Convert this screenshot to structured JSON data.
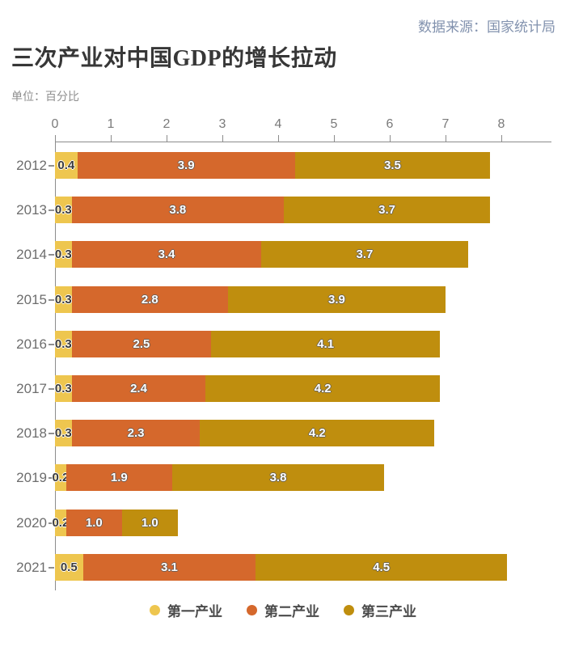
{
  "header": {
    "source": "数据来源：国家统计局",
    "title": "三次产业对中国GDP的增长拉动",
    "unit_label": "单位：百分比"
  },
  "chart_data": {
    "type": "bar",
    "orientation": "horizontal",
    "stacked": true,
    "title": "三次产业对中国GDP的增长拉动",
    "unit": "百分比",
    "categories": [
      "2012",
      "2013",
      "2014",
      "2015",
      "2016",
      "2017",
      "2018",
      "2019",
      "2020",
      "2021"
    ],
    "series": [
      {
        "key": "primary",
        "name": "第一产业",
        "color": "#eec64f",
        "values": [
          0.4,
          0.3,
          0.3,
          0.3,
          0.3,
          0.3,
          0.3,
          0.2,
          0.2,
          0.5
        ]
      },
      {
        "key": "secondary",
        "name": "第二产业",
        "color": "#d5682c",
        "values": [
          3.9,
          3.8,
          3.4,
          2.8,
          2.5,
          2.4,
          2.3,
          1.9,
          1.0,
          3.1
        ]
      },
      {
        "key": "tertiary",
        "name": "第三产业",
        "color": "#bf8e0e",
        "values": [
          3.5,
          3.7,
          3.7,
          3.9,
          4.1,
          4.2,
          4.2,
          3.8,
          1.0,
          4.5
        ]
      }
    ],
    "x_axis": {
      "ticks": [
        0,
        1,
        2,
        3,
        4,
        5,
        6,
        7,
        8
      ],
      "range": [
        0,
        8.9
      ],
      "position": "top"
    },
    "grid": false,
    "legend_position": "bottom",
    "value_labels": "one-decimal, shown inside each segment"
  }
}
